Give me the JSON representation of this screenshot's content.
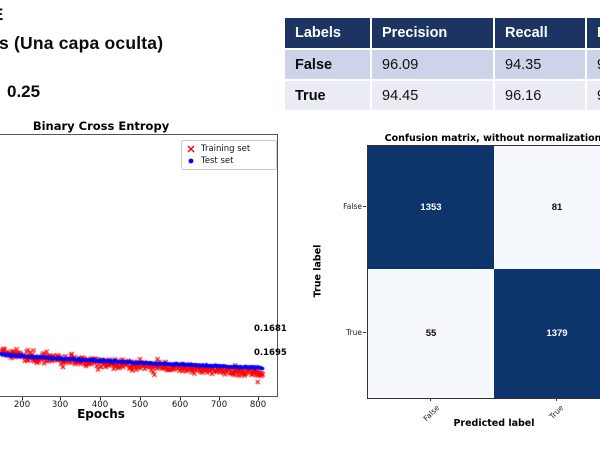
{
  "header": {
    "line1_fragment": "E",
    "line2": "s (Una capa oculta)",
    "line3": "0.25"
  },
  "metrics_table": {
    "columns": [
      "Labels",
      "Precision",
      "Recall",
      "F"
    ],
    "rows": [
      {
        "label": "False",
        "precision": "96.09",
        "recall": "94.35",
        "f_partial": "9"
      },
      {
        "label": "True",
        "precision": "94.45",
        "recall": "96.16",
        "f_partial": "9"
      }
    ],
    "colors": {
      "header_bg": "#1c3461",
      "header_text": "#ffffff",
      "row1_bg": "#cdd3e9",
      "row2_bg": "#e9ebf5"
    }
  },
  "chart_data": [
    {
      "type": "scatter",
      "title": "Binary Cross Entropy",
      "xlabel": "Epochs",
      "xticks": [
        200,
        300,
        400,
        500,
        600,
        700,
        800
      ],
      "x_visible_range": [
        145,
        845
      ],
      "legend_position": "upper right",
      "legend": [
        {
          "label": "Training set",
          "marker": "x",
          "color": "#ff0000"
        },
        {
          "label": "Test set",
          "marker": "dot",
          "color": "#0000ff"
        }
      ],
      "series": [
        {
          "name": "Training set",
          "marker": "x",
          "color": "#ff0000",
          "epoch_range": [
            145,
            812
          ],
          "loss_start": 0.174,
          "loss_end": 0.1681,
          "noise": 0.0018,
          "points": 420
        },
        {
          "name": "Test set",
          "marker": "dot",
          "color": "#0000ff",
          "epoch_range": [
            145,
            812
          ],
          "loss_start": 0.1735,
          "loss_end": 0.1695,
          "noise": 0.0005,
          "points": 420
        }
      ],
      "annotations": [
        {
          "text": "0.1681"
        },
        {
          "text": "0.1695"
        }
      ]
    },
    {
      "type": "heatmap",
      "title": "Confusion matrix, without normalization",
      "xlabel": "Predicted label",
      "ylabel": "True label",
      "classes": [
        "False",
        "True"
      ],
      "matrix": [
        [
          1353,
          81
        ],
        [
          55,
          1379
        ]
      ],
      "colors": {
        "dark": "#0e356b",
        "light": "#f5f8fc",
        "text_on_dark": "#ffffff",
        "text_on_light": "#0a0a0a"
      }
    }
  ]
}
